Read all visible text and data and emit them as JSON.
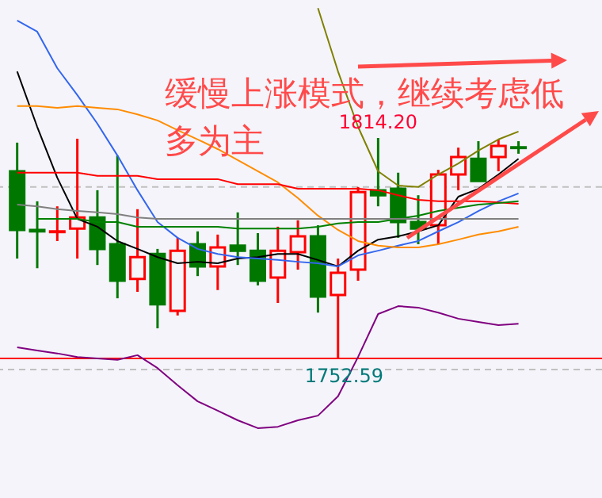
{
  "chart_data": {
    "type": "candlestick",
    "categories": [
      null,
      null,
      null,
      null,
      null,
      null,
      null,
      null,
      null,
      null,
      null,
      null,
      null,
      null,
      null,
      null,
      null,
      null,
      null,
      null,
      null,
      null,
      null,
      null,
      null,
      null
    ],
    "ohlc": [
      [
        1804.9,
        1812.9,
        1780.5,
        1788.5
      ],
      [
        1788.5,
        1796.5,
        1777.8,
        1788.1
      ],
      [
        1787.9,
        1795.1,
        1785.4,
        1788.1
      ],
      [
        1788.9,
        1814.0,
        1780.5,
        1792.0
      ],
      [
        1792.0,
        1799.6,
        1778.7,
        1783.2
      ],
      [
        1784.5,
        1809.3,
        1769.4,
        1774.3
      ],
      [
        1774.8,
        1794.3,
        1771.2,
        1780.9
      ],
      [
        1781.8,
        1783.2,
        1761.0,
        1767.7
      ],
      [
        1765.9,
        1786.3,
        1764.6,
        1782.7
      ],
      [
        1784.5,
        1788.1,
        1775.6,
        1778.3
      ],
      [
        1778.3,
        1787.2,
        1771.7,
        1783.6
      ],
      [
        1784.1,
        1793.4,
        1778.7,
        1782.7
      ],
      [
        1782.7,
        1787.6,
        1773.0,
        1774.3
      ],
      [
        1775.2,
        1789.4,
        1768.1,
        1782.7
      ],
      [
        1782.3,
        1791.2,
        1777.4,
        1786.7
      ],
      [
        1786.7,
        1789.8,
        1765.4,
        1769.9
      ],
      [
        1770.3,
        1780.5,
        1752.59,
        1776.5
      ],
      [
        1777.4,
        1800.5,
        1774.3,
        1799.1
      ],
      [
        1799.6,
        1814.2,
        1795.1,
        1798.2
      ],
      [
        1800.0,
        1804.5,
        1786.3,
        1790.7
      ],
      [
        1790.7,
        1798.2,
        1784.5,
        1788.9
      ],
      [
        1789.8,
        1805.3,
        1784.5,
        1804.0
      ],
      [
        1804.0,
        1811.5,
        1799.6,
        1808.9
      ],
      [
        1808.4,
        1813.3,
        1802.2,
        1802.2
      ],
      [
        1808.9,
        1813.8,
        1804.9,
        1812.0
      ],
      [
        1811.6,
        1813.3,
        1809.8,
        1811.4
      ]
    ],
    "series": [
      {
        "type": "line",
        "color": "#000000",
        "values": [
          1832.8,
          1817.3,
          1803.1,
          1791.6,
          1789.4,
          1785.4,
          1783.2,
          1780.9,
          1779.2,
          1779.6,
          1779.2,
          1780.5,
          1780.9,
          1781.8,
          1781.8,
          1780.1,
          1778.3,
          1782.7,
          1785.8,
          1786.7,
          1788.1,
          1789.8,
          1797.8,
          1800.0,
          1804.0,
          1808.4
        ]
      },
      {
        "type": "line",
        "color": "#3366ee",
        "values": [
          1847.0,
          1843.9,
          1833.7,
          1826.2,
          1818.2,
          1809.3,
          1799.6,
          1790.7,
          1786.3,
          1783.2,
          1781.8,
          1780.9,
          1780.5,
          1780.1,
          1779.6,
          1779.2,
          1778.3,
          1781.4,
          1782.7,
          1784.1,
          1785.4,
          1788.1,
          1790.7,
          1793.8,
          1796.5,
          1798.7
        ]
      },
      {
        "type": "line",
        "color": "#ff8c00",
        "values": [
          1823.1,
          1823.1,
          1822.6,
          1823.1,
          1822.6,
          1822.2,
          1820.8,
          1819.1,
          1816.4,
          1813.8,
          1811.1,
          1808.0,
          1804.9,
          1801.8,
          1797.4,
          1792.5,
          1788.5,
          1785.4,
          1784.1,
          1783.6,
          1783.6,
          1784.5,
          1785.8,
          1787.2,
          1788.1,
          1789.4
        ]
      },
      {
        "type": "line",
        "color": "#808000",
        "values": [
          null,
          null,
          null,
          null,
          null,
          null,
          null,
          null,
          null,
          null,
          null,
          null,
          null,
          null,
          null,
          1850.5,
          1832.8,
          1817.3,
          1804.9,
          1800.9,
          1800.5,
          1804.0,
          1807.1,
          1810.7,
          1813.8,
          1816.0
        ]
      },
      {
        "type": "line",
        "color": "#800080",
        "values": [
          1755.7,
          1754.8,
          1754.0,
          1753.0,
          1752.6,
          1752.2,
          1753.5,
          1749.9,
          1745.1,
          1740.6,
          1738.0,
          1735.3,
          1733.1,
          1733.5,
          1735.3,
          1736.6,
          1742.0,
          1753.0,
          1765.0,
          1767.2,
          1766.8,
          1765.4,
          1763.7,
          1762.8,
          1761.9,
          1762.3
        ]
      },
      {
        "type": "line",
        "color": "#ff0000",
        "values": [
          1804.5,
          1804.5,
          1804.5,
          1804.5,
          1803.6,
          1803.6,
          1803.6,
          1802.7,
          1802.7,
          1802.7,
          1802.7,
          1801.3,
          1801.3,
          1801.3,
          1800.0,
          1800.0,
          1800.0,
          1800.0,
          1799.6,
          1798.2,
          1796.9,
          1796.5,
          1796.5,
          1796.5,
          1796.2,
          1795.8
        ]
      },
      {
        "type": "line",
        "color": "#008000",
        "values": [
          null,
          1791.6,
          1791.6,
          1791.6,
          1790.7,
          1790.7,
          1789.4,
          1789.4,
          1789.4,
          1789.4,
          1789.4,
          1788.9,
          1788.9,
          1788.9,
          1788.9,
          1789.4,
          1790.3,
          1790.7,
          1790.7,
          1791.6,
          1792.5,
          1793.8,
          1794.7,
          1795.6,
          1796.0,
          1796.5
        ]
      },
      {
        "type": "line",
        "color": "#808080",
        "values": [
          1795.6,
          1795.1,
          1794.3,
          1793.8,
          1793.4,
          1792.9,
          1792.0,
          1791.6,
          1791.6,
          1791.6,
          1791.6,
          1791.6,
          1791.6,
          1791.6,
          1791.6,
          1791.6,
          1791.6,
          1791.6,
          1791.6,
          1791.6,
          1791.6,
          1791.6,
          1791.6,
          1791.6,
          1791.6,
          1791.6
        ]
      }
    ],
    "ref_lines": [
      {
        "axis": "y",
        "value": 1800.5,
        "color": "#c0c0c0",
        "line_style": "dashed"
      },
      {
        "axis": "y",
        "value": 1749.5,
        "color": "#c0c0c0",
        "line_style": "dashed"
      },
      {
        "axis": "y",
        "value": 1752.59,
        "color": "#ff0000",
        "line_style": "solid"
      }
    ],
    "annotations": [
      "缓慢上涨模式，继续考虑低多为主",
      {
        "text": "1814.20",
        "y": 1814.2
      },
      {
        "text": "1752.59",
        "y": 1752.59
      }
    ],
    "tick_labels": false
  }
}
